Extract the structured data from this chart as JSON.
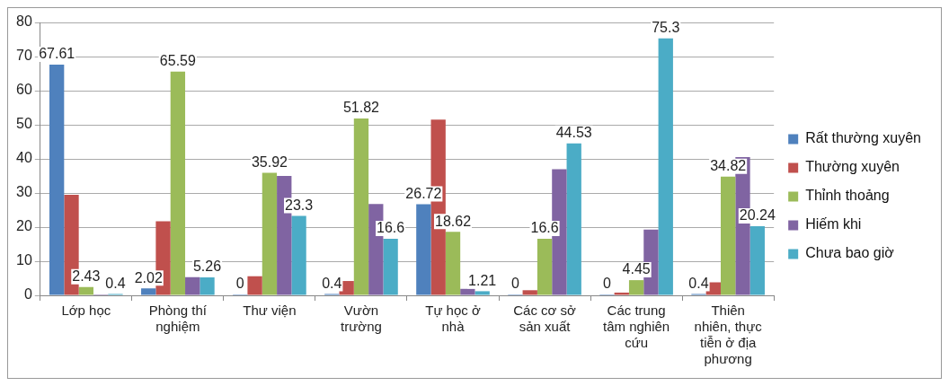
{
  "chart_data": {
    "type": "bar",
    "categories": [
      "Lớp học",
      "Phòng thí nghiệm",
      "Thư viện",
      "Vườn trường",
      "Tự học ở nhà",
      "Các cơ sở sản xuất",
      "Các trung tâm nghiên cứu",
      "Thiên nhiên, thực tiễn ở địa phương"
    ],
    "series": [
      {
        "name": "Rất thường xuyên",
        "color": "#4f81bd",
        "values": [
          67.61,
          2.02,
          0,
          0.4,
          26.72,
          0,
          0,
          0.4
        ],
        "value_labels": [
          "67.61",
          "2.02",
          "0",
          "0.4",
          "26.72",
          "0",
          "0",
          "0.4"
        ]
      },
      {
        "name": "Thường xuyên",
        "color": "#c0504d",
        "values": [
          29.5,
          21.7,
          5.6,
          4.2,
          51.5,
          1.5,
          0.8,
          3.8
        ]
      },
      {
        "name": "Thỉnh thoảng",
        "color": "#9bbb59",
        "values": [
          2.43,
          65.59,
          35.92,
          51.82,
          18.62,
          16.6,
          4.45,
          34.82
        ],
        "value_labels": [
          "2.43",
          "65.59",
          "35.92",
          "51.82",
          "18.62",
          "16.6",
          "4.45",
          "34.82"
        ]
      },
      {
        "name": "Hiếm khi",
        "color": "#8064a2",
        "values": [
          0,
          5.3,
          35,
          26.8,
          1.9,
          37,
          19.3,
          40.5
        ]
      },
      {
        "name": "Chưa bao giờ",
        "color": "#4bacc6",
        "values": [
          0.4,
          5.26,
          23.3,
          16.6,
          1.21,
          44.53,
          75.3,
          20.24
        ],
        "value_labels": [
          "0.4",
          "5.26",
          "23.3",
          "16.6",
          "1.21",
          "44.53",
          "75.3",
          "20.24"
        ]
      }
    ],
    "ylim": [
      0,
      80
    ],
    "yticks": [
      0,
      10,
      20,
      30,
      40,
      50,
      60,
      70,
      80
    ],
    "grid": "y",
    "legend": "right"
  }
}
